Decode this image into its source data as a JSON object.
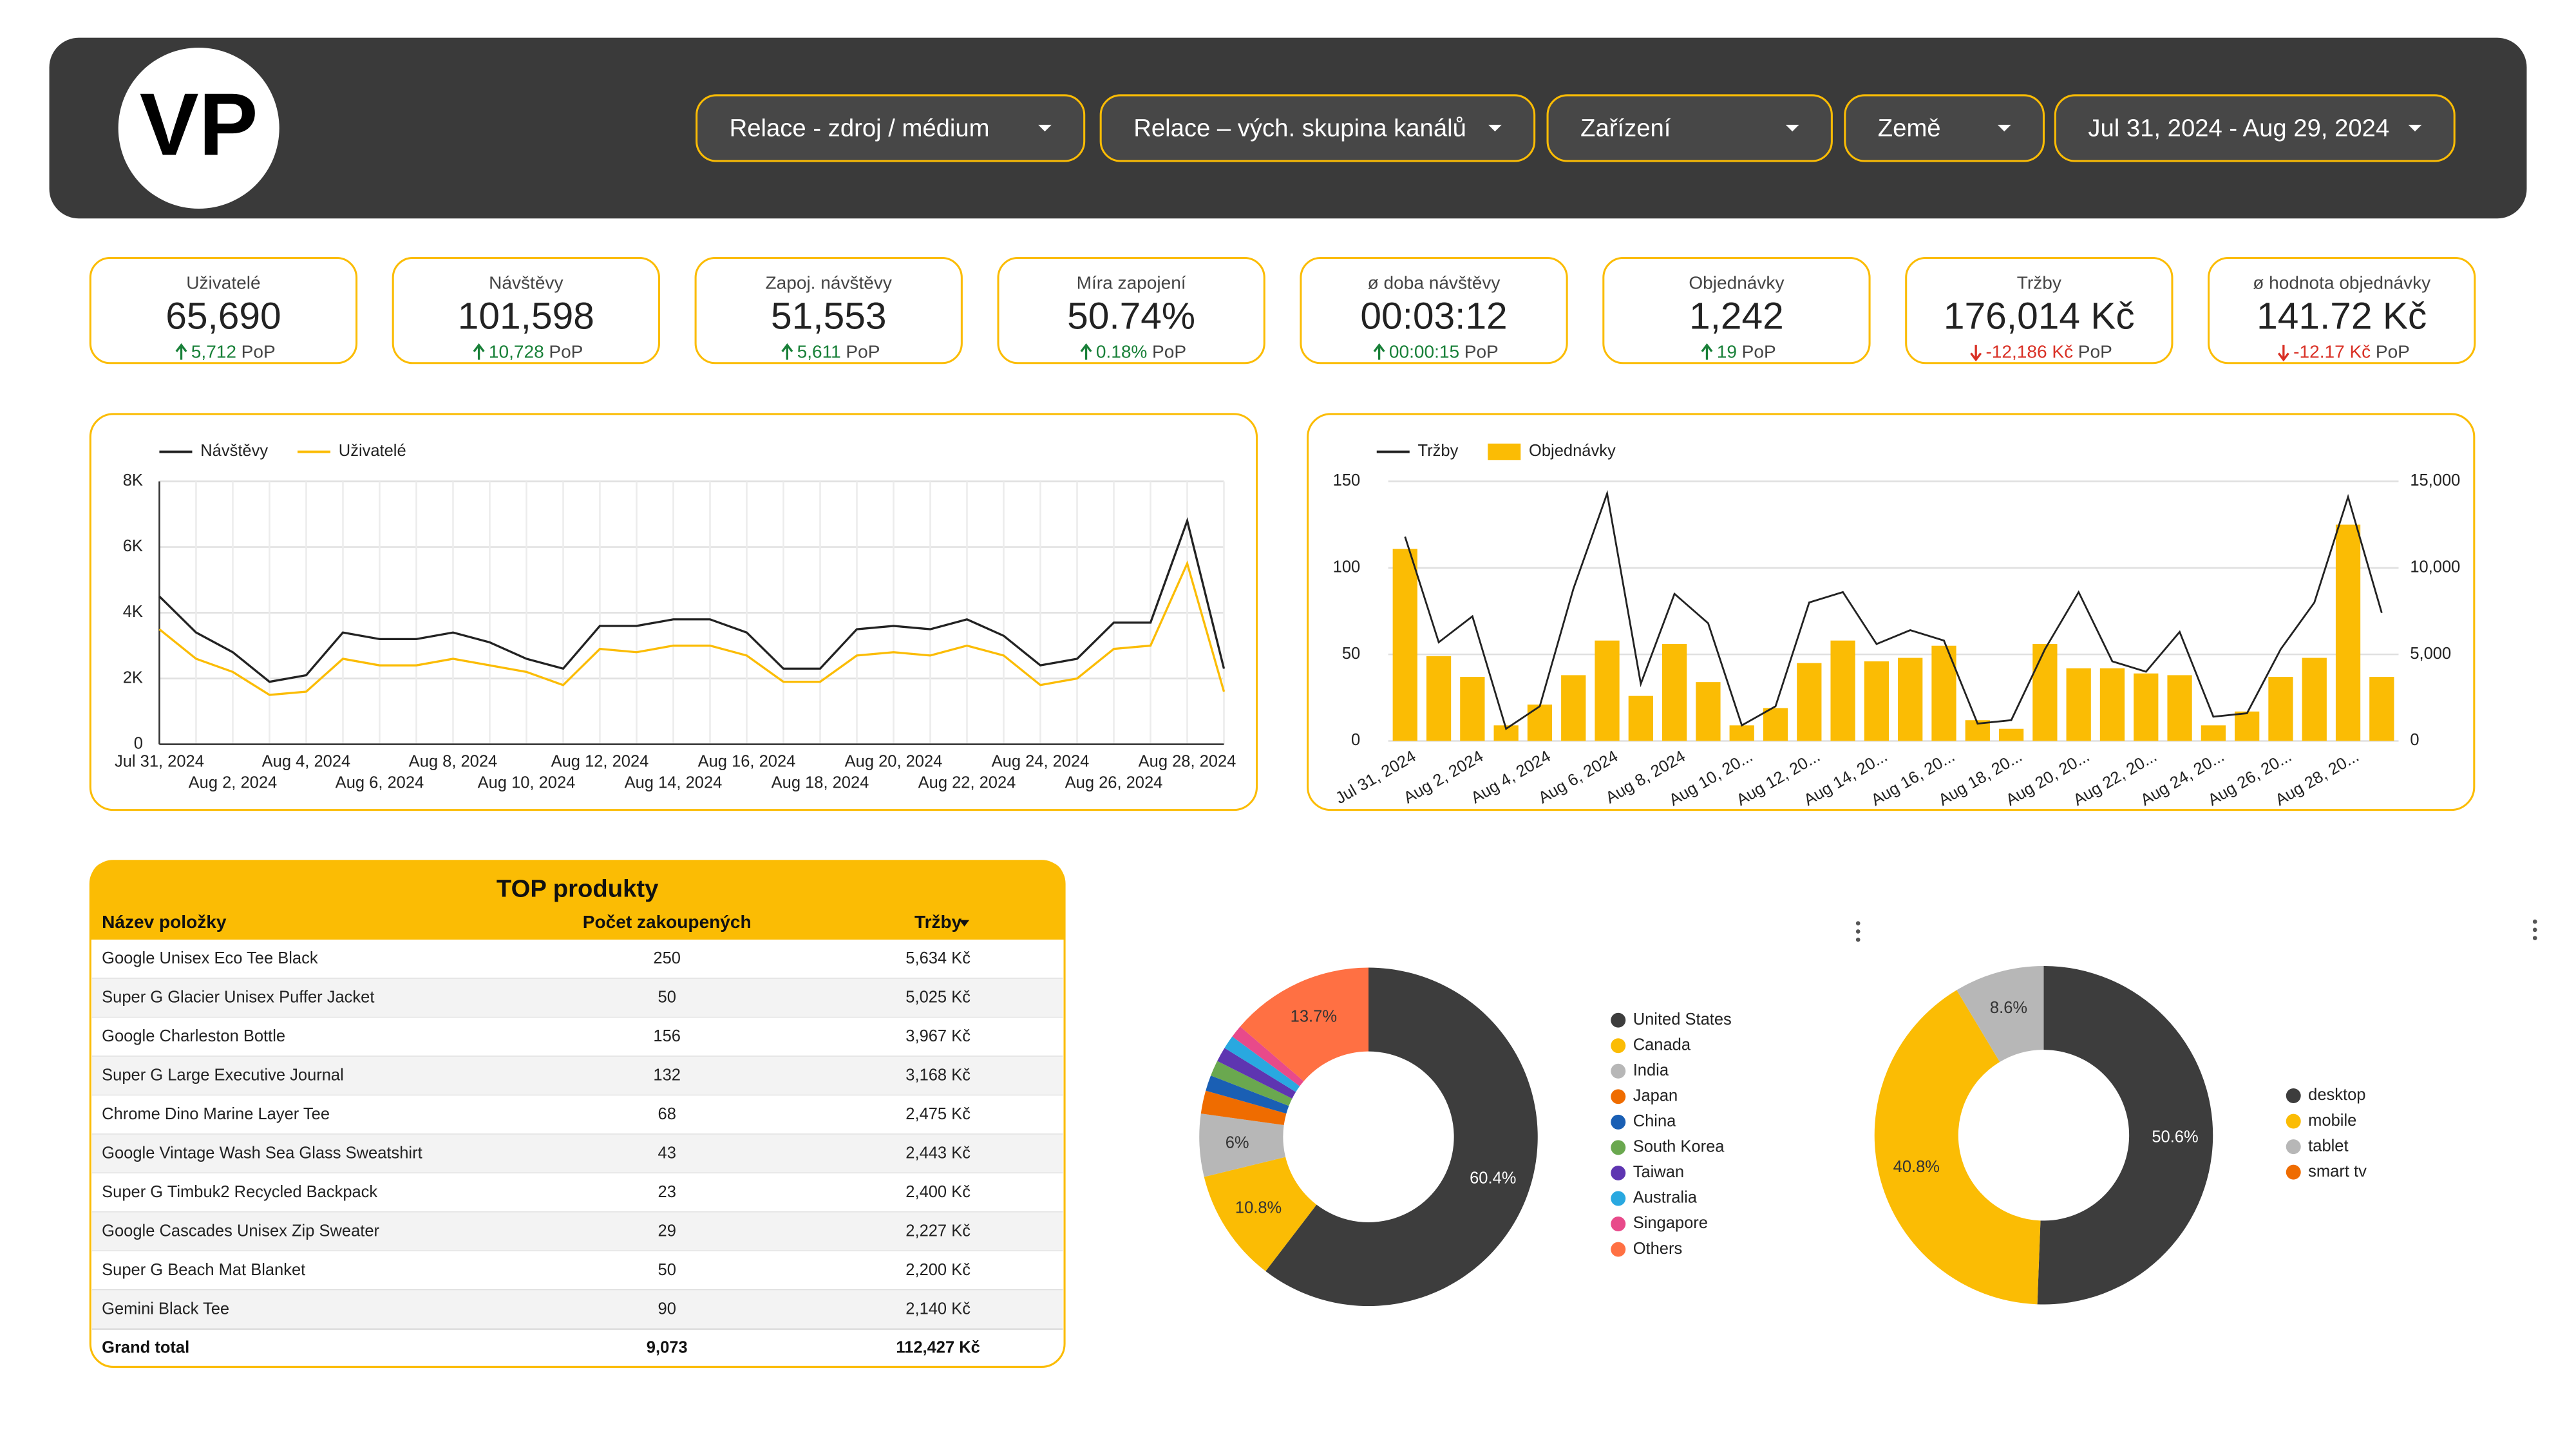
{
  "header": {
    "logo": "VP",
    "filters": [
      "Relace - zdroj / médium",
      "Relace – vých. skupina kanálů",
      "Zařízení",
      "Země",
      "Jul 31, 2024 - Aug 29, 2024"
    ]
  },
  "kpis": [
    {
      "label": "Uživatelé",
      "value": "65,690",
      "delta": "5,712",
      "delta_unit": "PoP",
      "trend": "up"
    },
    {
      "label": "Návštěvy",
      "value": "101,598",
      "delta": "10,728",
      "delta_unit": "PoP",
      "trend": "up"
    },
    {
      "label": "Zapoj. návštěvy",
      "value": "51,553",
      "delta": "5,611",
      "delta_unit": "PoP",
      "trend": "up"
    },
    {
      "label": "Míra zapojení",
      "value": "50.74%",
      "delta": "0.18%",
      "delta_unit": "PoP",
      "trend": "up"
    },
    {
      "label": "ø doba návštěvy",
      "value": "00:03:12",
      "delta": "00:00:15",
      "delta_unit": "PoP",
      "trend": "up"
    },
    {
      "label": "Objednávky",
      "value": "1,242",
      "delta": "19",
      "delta_unit": "PoP",
      "trend": "up"
    },
    {
      "label": "Tržby",
      "value": "176,014 Kč",
      "delta": "-12,186 Kč",
      "delta_unit": "PoP",
      "trend": "down"
    },
    {
      "label": "ø hodnota objednávky",
      "value": "141.72 Kč",
      "delta": "-12.17 Kč",
      "delta_unit": "PoP",
      "trend": "down"
    }
  ],
  "table": {
    "title": "TOP produkty",
    "columns": [
      "Název položky",
      "Počet zakoupených",
      "Tržby"
    ],
    "rows": [
      [
        "Google Unisex Eco Tee Black",
        "250",
        "5,634 Kč"
      ],
      [
        "Super G Glacier Unisex Puffer Jacket",
        "50",
        "5,025 Kč"
      ],
      [
        "Google Charleston Bottle",
        "156",
        "3,967 Kč"
      ],
      [
        "Super G Large Executive Journal",
        "132",
        "3,168 Kč"
      ],
      [
        "Chrome Dino Marine Layer Tee",
        "68",
        "2,475 Kč"
      ],
      [
        "Google Vintage Wash Sea Glass Sweatshirt",
        "43",
        "2,443 Kč"
      ],
      [
        "Super G Timbuk2 Recycled Backpack",
        "23",
        "2,400 Kč"
      ],
      [
        "Google Cascades Unisex Zip Sweater",
        "29",
        "2,227 Kč"
      ],
      [
        "Super G Beach Mat Blanket",
        "50",
        "2,200 Kč"
      ],
      [
        "Gemini Black Tee",
        "90",
        "2,140 Kč"
      ]
    ],
    "total": [
      "Grand total",
      "9,073",
      "112,427 Kč"
    ]
  },
  "chart_data": [
    {
      "type": "line",
      "categories": [
        "Jul 31, 2024",
        null,
        "Aug 2, 2024",
        null,
        "Aug 4, 2024",
        null,
        "Aug 6, 2024",
        null,
        "Aug 8, 2024",
        null,
        "Aug 10, 2024",
        null,
        "Aug 12, 2024",
        null,
        "Aug 14, 2024",
        null,
        "Aug 16, 2024",
        null,
        "Aug 18, 2024",
        null,
        "Aug 20, 2024",
        null,
        "Aug 22, 2024",
        null,
        "Aug 24, 2024",
        null,
        "Aug 26, 2024",
        null,
        "Aug 28, 2024",
        null
      ],
      "series": [
        {
          "name": "Návštěvy",
          "color": "#222222",
          "values": [
            4500,
            3400,
            2800,
            1900,
            2100,
            3400,
            3200,
            3200,
            3400,
            3100,
            2600,
            2300,
            3600,
            3600,
            3800,
            3800,
            3400,
            2300,
            2300,
            3500,
            3600,
            3500,
            3800,
            3300,
            2400,
            2600,
            3700,
            3700,
            6800,
            2300
          ]
        },
        {
          "name": "Uživatelé",
          "color": "#fbbc04",
          "values": [
            3500,
            2600,
            2200,
            1500,
            1600,
            2600,
            2400,
            2400,
            2600,
            2400,
            2200,
            1800,
            2900,
            2800,
            3000,
            3000,
            2700,
            1900,
            1900,
            2700,
            2800,
            2700,
            3000,
            2700,
            1800,
            2000,
            2900,
            3000,
            5500,
            1600
          ]
        }
      ],
      "ylim": [
        0,
        8000
      ],
      "yticks": [
        0,
        {
          "value": 2000,
          "label": "2K"
        },
        {
          "value": 4000,
          "label": "4K"
        },
        {
          "value": 6000,
          "label": "6K"
        },
        {
          "value": 8000,
          "label": "8K"
        }
      ],
      "grid": true,
      "legend": "top-left"
    },
    {
      "type": "bar",
      "categories": [
        "Jul 31, 2024",
        null,
        "Aug 2, 2024",
        null,
        "Aug 4, 2024",
        null,
        "Aug 6, 2024",
        null,
        "Aug 8, 2024",
        null,
        "Aug 10, 20...",
        null,
        "Aug 12, 20...",
        null,
        "Aug 14, 20...",
        null,
        "Aug 16, 20...",
        null,
        "Aug 18, 20...",
        null,
        "Aug 20, 20...",
        null,
        "Aug 22, 20...",
        null,
        "Aug 24, 20...",
        null,
        "Aug 26, 20...",
        null,
        "Aug 28, 20...",
        null
      ],
      "series": [
        {
          "name": "Tržby",
          "type": "line",
          "axis": "y2",
          "color": "#222222",
          "values": [
            11800,
            5700,
            7200,
            700,
            2000,
            8800,
            14300,
            3300,
            8500,
            6800,
            900,
            2000,
            8000,
            8600,
            5600,
            6400,
            5800,
            1000,
            1200,
            5300,
            8600,
            4600,
            4000,
            6300,
            1400,
            1600,
            5300,
            8000,
            14100,
            7400
          ]
        },
        {
          "name": "Objednávky",
          "type": "bar",
          "color": "#fbbc04",
          "values": [
            111,
            49,
            37,
            9,
            21,
            38,
            58,
            26,
            56,
            34,
            9,
            19,
            45,
            58,
            46,
            48,
            55,
            12,
            7,
            56,
            42,
            42,
            39,
            38,
            9,
            17,
            37,
            48,
            125,
            37
          ]
        }
      ],
      "ylim": [
        0,
        150
      ],
      "yticks": [
        0,
        50,
        100,
        150
      ],
      "y2lim": [
        0,
        15000
      ],
      "y2ticks": [
        0,
        {
          "value": 5000,
          "label": "5,000"
        },
        {
          "value": 10000,
          "label": "10,000"
        },
        {
          "value": 15000,
          "label": "15,000"
        }
      ],
      "grid": true,
      "legend": "top-left"
    },
    {
      "type": "pie",
      "donut": true,
      "categories": [
        "United States",
        "Canada",
        "India",
        "Japan",
        "China",
        "South Korea",
        "Taiwan",
        "Australia",
        "Singapore",
        "Others"
      ],
      "values": [
        60.4,
        10.8,
        6,
        2.2,
        1.5,
        1.5,
        1.4,
        1.3,
        1.2,
        13.7
      ],
      "value_labels": [
        "60.4%",
        "10.8%",
        "6%",
        null,
        null,
        null,
        null,
        null,
        null,
        "13.7%"
      ],
      "colors": [
        "#3d3d3d",
        "#fbbc04",
        "#b7b7b7",
        "#ef6c00",
        "#1a5fb4",
        "#6aa84f",
        "#5e35b1",
        "#29a8e0",
        "#e84a8a",
        "#ff7043"
      ],
      "legend": "right"
    },
    {
      "type": "pie",
      "donut": true,
      "categories": [
        "desktop",
        "mobile",
        "tablet",
        "smart tv"
      ],
      "values": [
        50.6,
        40.8,
        8.6,
        0
      ],
      "value_labels": [
        "50.6%",
        "40.8%",
        "8.6%",
        null
      ],
      "colors": [
        "#3d3d3d",
        "#fbbc04",
        "#b7b7b7",
        "#ef6c00"
      ],
      "legend": "right"
    }
  ]
}
